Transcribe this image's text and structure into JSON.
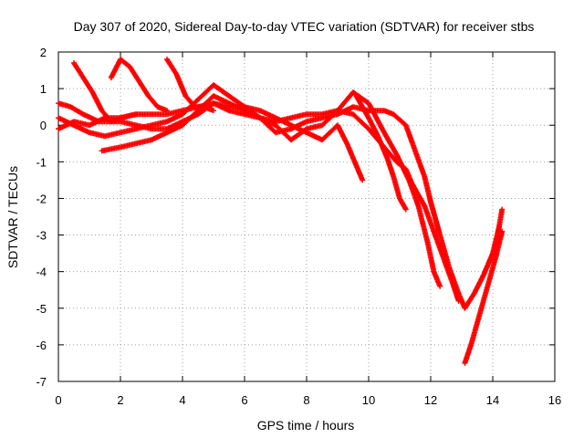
{
  "chart_data": {
    "type": "scatter",
    "title": "Day 307 of 2020, Sidereal Day-to-day VTEC variation (SDTVAR) for receiver stbs",
    "xlabel": "GPS time / hours",
    "ylabel": "SDTVAR / TECUs",
    "xlim": [
      0,
      16
    ],
    "ylim": [
      -7,
      2
    ],
    "xticks": [
      0,
      2,
      4,
      6,
      8,
      10,
      12,
      14,
      16
    ],
    "yticks": [
      -7,
      -6,
      -5,
      -4,
      -3,
      -2,
      -1,
      0,
      1,
      2
    ],
    "grid": true,
    "marker": "+",
    "color": "#ff0000",
    "series": [
      {
        "points": [
          [
            0,
            -0.1
          ],
          [
            0.5,
            0.1
          ],
          [
            1.0,
            0.0
          ],
          [
            1.5,
            0.2
          ],
          [
            2.0,
            0.2
          ],
          [
            2.5,
            0.3
          ],
          [
            3.0,
            0.3
          ],
          [
            3.5,
            0.3
          ],
          [
            4.0,
            0.4
          ],
          [
            4.5,
            0.5
          ],
          [
            5.0,
            0.6
          ],
          [
            5.5,
            0.4
          ],
          [
            6.0,
            0.3
          ],
          [
            6.5,
            0.2
          ],
          [
            7.0,
            -0.2
          ],
          [
            7.5,
            -0.1
          ],
          [
            8.0,
            0.1
          ],
          [
            8.5,
            0.2
          ],
          [
            9.0,
            0.3
          ],
          [
            9.5,
            0.5
          ],
          [
            10.0,
            0.4
          ],
          [
            10.5,
            0.4
          ],
          [
            10.8,
            0.3
          ],
          [
            11.2,
            0.0
          ],
          [
            11.5,
            -0.7
          ],
          [
            11.8,
            -1.4
          ],
          [
            12.0,
            -2.1
          ],
          [
            12.3,
            -3.0
          ],
          [
            12.6,
            -3.9
          ],
          [
            12.9,
            -4.6
          ],
          [
            13.1,
            -5.0
          ],
          [
            13.4,
            -4.6
          ],
          [
            13.7,
            -4.1
          ],
          [
            14.0,
            -3.5
          ],
          [
            14.2,
            -2.8
          ],
          [
            14.3,
            -2.3
          ]
        ]
      },
      {
        "points": [
          [
            0,
            0.2
          ],
          [
            0.5,
            0.0
          ],
          [
            1.0,
            -0.2
          ],
          [
            1.5,
            -0.3
          ],
          [
            2.0,
            -0.2
          ],
          [
            2.5,
            -0.1
          ],
          [
            3.0,
            0.0
          ],
          [
            3.5,
            0.1
          ],
          [
            4.0,
            0.3
          ],
          [
            4.5,
            0.7
          ],
          [
            5.0,
            1.1
          ],
          [
            5.5,
            0.8
          ],
          [
            6.0,
            0.5
          ],
          [
            6.5,
            0.2
          ],
          [
            7.0,
            0.0
          ],
          [
            7.5,
            -0.4
          ],
          [
            8.0,
            -0.1
          ],
          [
            8.5,
            0.0
          ],
          [
            9.0,
            0.4
          ],
          [
            9.5,
            0.9
          ],
          [
            10.0,
            0.6
          ],
          [
            10.5,
            -0.2
          ],
          [
            10.9,
            -0.8
          ],
          [
            11.3,
            -1.5
          ],
          [
            11.6,
            -2.2
          ],
          [
            11.9,
            -3.2
          ],
          [
            12.1,
            -4.0
          ],
          [
            12.3,
            -4.4
          ]
        ]
      },
      {
        "points": [
          [
            1.4,
            -0.7
          ],
          [
            2.0,
            -0.6
          ],
          [
            2.5,
            -0.5
          ],
          [
            3.0,
            -0.4
          ],
          [
            3.5,
            -0.2
          ],
          [
            4.0,
            0.0
          ],
          [
            4.5,
            0.4
          ],
          [
            5.0,
            0.8
          ],
          [
            5.5,
            0.6
          ],
          [
            6.0,
            0.4
          ],
          [
            6.5,
            0.2
          ],
          [
            7.0,
            0.1
          ],
          [
            7.5,
            0.2
          ],
          [
            8.0,
            0.3
          ],
          [
            8.5,
            0.3
          ],
          [
            9.0,
            0.4
          ],
          [
            9.5,
            0.3
          ],
          [
            10.0,
            -0.1
          ],
          [
            10.5,
            -0.6
          ],
          [
            10.9,
            -1.0
          ],
          [
            11.2,
            -1.2
          ],
          [
            11.4,
            -1.6
          ],
          [
            11.8,
            -2.2
          ],
          [
            12.1,
            -2.9
          ],
          [
            12.4,
            -3.6
          ],
          [
            12.7,
            -4.3
          ],
          [
            12.9,
            -4.8
          ]
        ]
      },
      {
        "points": [
          [
            0,
            0.6
          ],
          [
            0.4,
            0.5
          ],
          [
            0.8,
            0.3
          ],
          [
            1.3,
            0.1
          ],
          [
            2.0,
            0.1
          ],
          [
            2.5,
            0.0
          ],
          [
            3.0,
            -0.1
          ],
          [
            3.5,
            -0.1
          ],
          [
            4.0,
            0.1
          ],
          [
            4.5,
            0.3
          ],
          [
            5.0,
            0.6
          ],
          [
            5.5,
            0.5
          ],
          [
            6.0,
            0.5
          ],
          [
            6.5,
            0.4
          ],
          [
            7.0,
            0.2
          ],
          [
            7.5,
            0.0
          ],
          [
            8.0,
            -0.2
          ],
          [
            8.5,
            -0.4
          ],
          [
            9.0,
            0.0
          ],
          [
            9.3,
            -0.5
          ],
          [
            9.5,
            -0.9
          ],
          [
            9.8,
            -1.5
          ]
        ]
      },
      {
        "points": [
          [
            0.5,
            1.7
          ],
          [
            0.8,
            1.3
          ],
          [
            1.1,
            0.9
          ],
          [
            1.4,
            0.4
          ],
          [
            1.7,
            0.1
          ],
          [
            2.0,
            0.2
          ],
          [
            2.5,
            0.3
          ]
        ]
      },
      {
        "points": [
          [
            1.7,
            1.3
          ],
          [
            2.0,
            1.8
          ],
          [
            2.3,
            1.6
          ],
          [
            2.6,
            1.2
          ],
          [
            2.9,
            0.8
          ],
          [
            3.2,
            0.5
          ],
          [
            3.5,
            0.4
          ]
        ]
      },
      {
        "points": [
          [
            3.5,
            1.8
          ],
          [
            3.8,
            1.4
          ],
          [
            4.1,
            0.8
          ],
          [
            4.4,
            0.5
          ],
          [
            4.7,
            0.5
          ],
          [
            5.0,
            0.4
          ]
        ]
      },
      {
        "points": [
          [
            9.6,
            0.8
          ],
          [
            10.0,
            0.2
          ],
          [
            10.3,
            -0.3
          ],
          [
            10.6,
            -0.9
          ],
          [
            10.8,
            -1.4
          ],
          [
            11.0,
            -2.0
          ],
          [
            11.2,
            -2.3
          ]
        ]
      },
      {
        "points": [
          [
            13.1,
            -6.5
          ],
          [
            13.3,
            -6.0
          ],
          [
            13.5,
            -5.4
          ],
          [
            13.7,
            -4.8
          ],
          [
            13.9,
            -4.2
          ],
          [
            14.1,
            -3.6
          ],
          [
            14.3,
            -2.9
          ]
        ]
      }
    ]
  }
}
